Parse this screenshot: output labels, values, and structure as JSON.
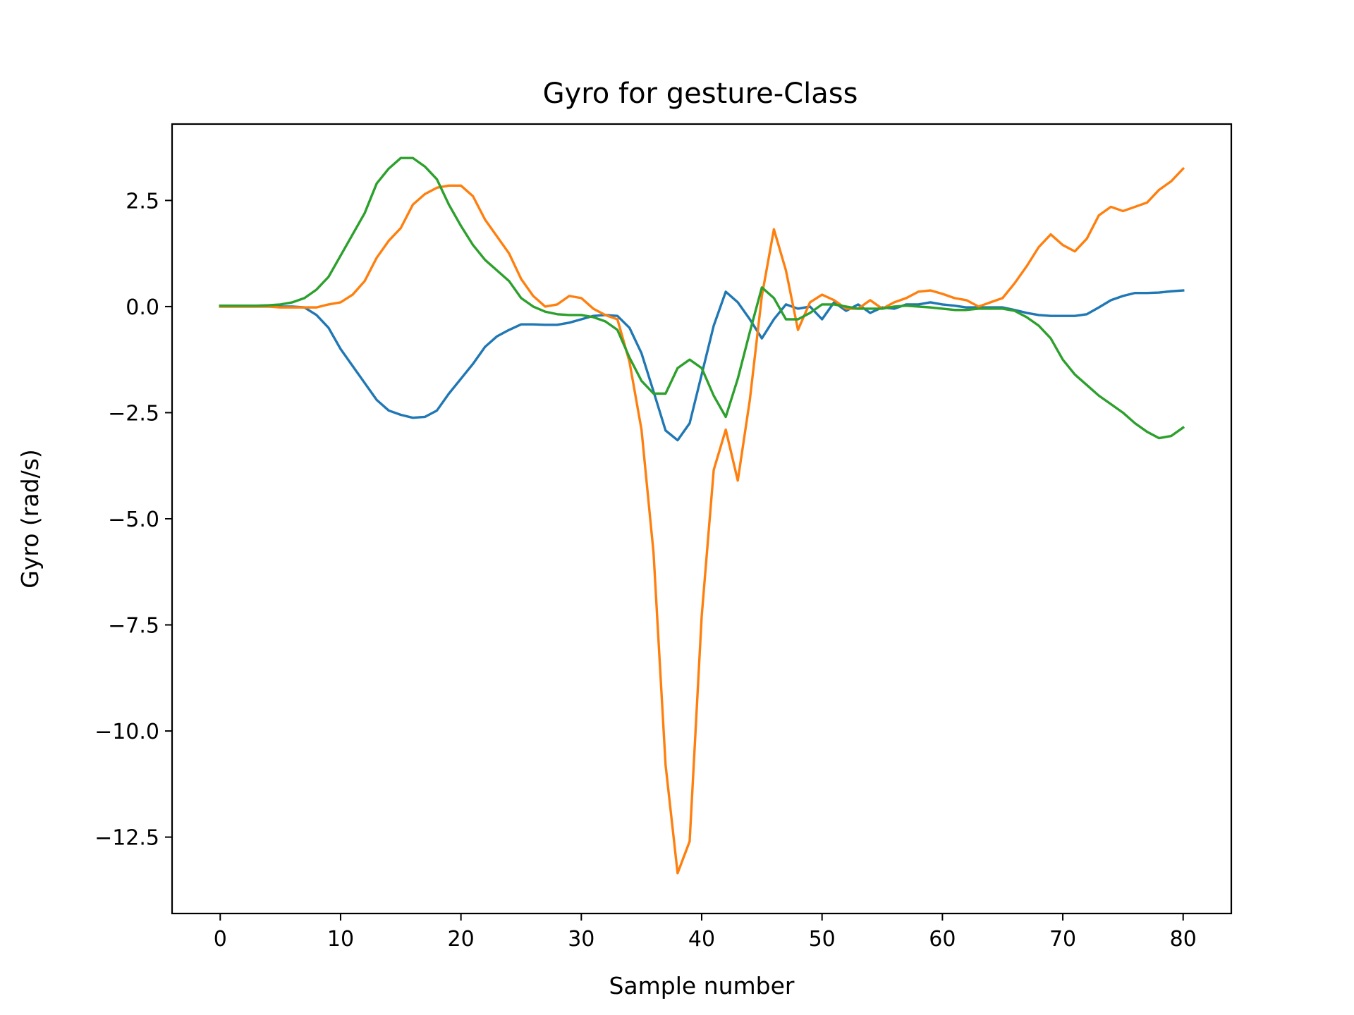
{
  "chart_data": {
    "type": "line",
    "title": "Gyro for gesture-Class",
    "xlabel": "Sample number",
    "ylabel": "Gyro  (rad/s)",
    "xlim": [
      -4,
      84
    ],
    "ylim": [
      -14.3,
      4.3
    ],
    "xticks": [
      0,
      10,
      20,
      30,
      40,
      50,
      60,
      70,
      80
    ],
    "yticks": [
      2.5,
      0.0,
      -2.5,
      -5.0,
      -7.5,
      -10.0,
      -12.5
    ],
    "xtick_labels": [
      "0",
      "10",
      "20",
      "30",
      "40",
      "50",
      "60",
      "70",
      "80"
    ],
    "ytick_labels": [
      "2.5",
      "0.0",
      "−2.5",
      "−5.0",
      "−7.5",
      "−10.0",
      "−12.5"
    ],
    "grid": false,
    "legend": "none",
    "x": [
      0,
      1,
      2,
      3,
      4,
      5,
      6,
      7,
      8,
      9,
      10,
      11,
      12,
      13,
      14,
      15,
      16,
      17,
      18,
      19,
      20,
      21,
      22,
      23,
      24,
      25,
      26,
      27,
      28,
      29,
      30,
      31,
      32,
      33,
      34,
      35,
      36,
      37,
      38,
      39,
      40,
      41,
      42,
      43,
      44,
      45,
      46,
      47,
      48,
      49,
      50,
      51,
      52,
      53,
      54,
      55,
      56,
      57,
      58,
      59,
      60,
      61,
      62,
      63,
      64,
      65,
      66,
      67,
      68,
      69,
      70,
      71,
      72,
      73,
      74,
      75,
      76,
      77,
      78,
      79,
      80
    ],
    "series": [
      {
        "color": "#1f77b4",
        "values": [
          0.0,
          0.0,
          0.0,
          0.0,
          0.0,
          0.0,
          0.0,
          -0.02,
          -0.2,
          -0.5,
          -1.0,
          -1.4,
          -1.8,
          -2.2,
          -2.45,
          -2.55,
          -2.62,
          -2.6,
          -2.45,
          -2.05,
          -1.7,
          -1.35,
          -0.95,
          -0.7,
          -0.55,
          -0.42,
          -0.42,
          -0.43,
          -0.43,
          -0.38,
          -0.3,
          -0.22,
          -0.2,
          -0.22,
          -0.5,
          -1.1,
          -2.0,
          -2.92,
          -3.15,
          -2.75,
          -1.6,
          -0.45,
          0.35,
          0.1,
          -0.3,
          -0.75,
          -0.3,
          0.05,
          -0.05,
          0.0,
          -0.3,
          0.1,
          -0.1,
          0.05,
          -0.15,
          -0.02,
          -0.05,
          0.05,
          0.05,
          0.1,
          0.05,
          0.02,
          -0.02,
          -0.02,
          -0.02,
          -0.02,
          -0.08,
          -0.15,
          -0.2,
          -0.22,
          -0.22,
          -0.22,
          -0.18,
          -0.02,
          0.15,
          0.25,
          0.32,
          0.32,
          0.33,
          0.36,
          0.38
        ]
      },
      {
        "color": "#ff7f0e",
        "values": [
          0.0,
          0.0,
          0.0,
          0.0,
          0.0,
          -0.02,
          -0.02,
          -0.02,
          -0.02,
          0.05,
          0.1,
          0.28,
          0.6,
          1.15,
          1.55,
          1.85,
          2.4,
          2.65,
          2.8,
          2.85,
          2.85,
          2.6,
          2.05,
          1.65,
          1.25,
          0.65,
          0.25,
          0.0,
          0.05,
          0.25,
          0.2,
          -0.05,
          -0.2,
          -0.3,
          -1.3,
          -2.9,
          -5.8,
          -10.8,
          -13.35,
          -12.6,
          -7.3,
          -3.85,
          -2.9,
          -4.1,
          -2.2,
          0.25,
          1.82,
          0.85,
          -0.55,
          0.1,
          0.28,
          0.15,
          -0.05,
          -0.05,
          0.15,
          -0.05,
          0.1,
          0.2,
          0.35,
          0.38,
          0.3,
          0.2,
          0.15,
          0.0,
          0.1,
          0.2,
          0.55,
          0.95,
          1.4,
          1.7,
          1.45,
          1.3,
          1.6,
          2.15,
          2.35,
          2.25,
          2.35,
          2.45,
          2.75,
          2.95,
          3.25
        ]
      },
      {
        "color": "#2ca02c",
        "values": [
          0.02,
          0.02,
          0.02,
          0.02,
          0.03,
          0.05,
          0.1,
          0.2,
          0.4,
          0.7,
          1.2,
          1.7,
          2.2,
          2.9,
          3.25,
          3.5,
          3.5,
          3.3,
          3.0,
          2.4,
          1.9,
          1.45,
          1.1,
          0.85,
          0.6,
          0.2,
          0.0,
          -0.12,
          -0.18,
          -0.2,
          -0.2,
          -0.25,
          -0.35,
          -0.55,
          -1.2,
          -1.75,
          -2.05,
          -2.05,
          -1.45,
          -1.25,
          -1.45,
          -2.1,
          -2.6,
          -1.7,
          -0.6,
          0.45,
          0.2,
          -0.3,
          -0.3,
          -0.15,
          0.05,
          0.05,
          0.0,
          -0.05,
          -0.05,
          -0.05,
          0.0,
          0.02,
          0.0,
          -0.02,
          -0.05,
          -0.08,
          -0.08,
          -0.05,
          -0.05,
          -0.05,
          -0.1,
          -0.25,
          -0.45,
          -0.75,
          -1.25,
          -1.6,
          -1.85,
          -2.1,
          -2.3,
          -2.5,
          -2.75,
          -2.95,
          -3.1,
          -3.05,
          -2.85
        ]
      }
    ]
  }
}
